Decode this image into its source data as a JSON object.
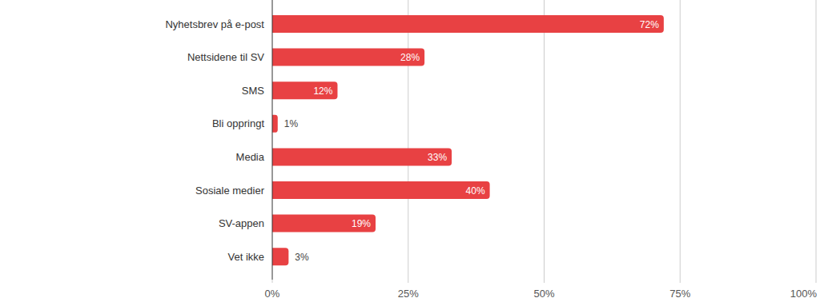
{
  "chart_data": {
    "type": "bar",
    "orientation": "horizontal",
    "categories": [
      "Nyhetsbrev på e-post",
      "Nettsidene til SV",
      "SMS",
      "Bli oppringt",
      "Media",
      "Sosiale medier",
      "SV-appen",
      "Vet ikke"
    ],
    "values": [
      72,
      28,
      12,
      1,
      33,
      40,
      19,
      3
    ],
    "value_labels": [
      "72%",
      "28%",
      "12%",
      "1%",
      "33%",
      "40%",
      "19%",
      "3%"
    ],
    "color": "#e84143",
    "xlim": [
      0,
      100
    ],
    "xticks": [
      {
        "value": 0,
        "label": "0%"
      },
      {
        "value": 25,
        "label": "25%"
      },
      {
        "value": 50,
        "label": "50%"
      },
      {
        "value": 75,
        "label": "75%"
      },
      {
        "value": 100,
        "label": "100%"
      }
    ],
    "grid": true,
    "data_labels": true
  }
}
